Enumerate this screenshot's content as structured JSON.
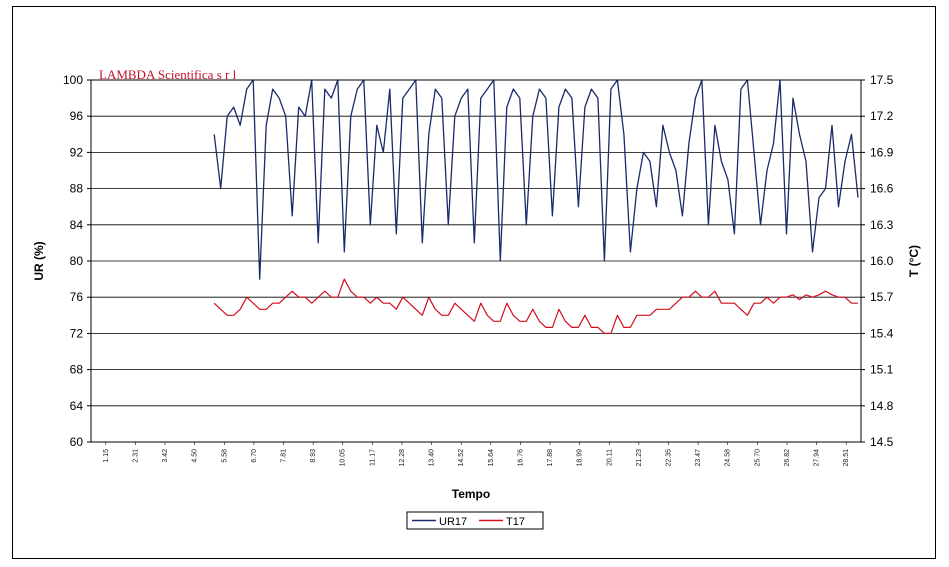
{
  "chart_data": {
    "type": "line",
    "brand_text": "LAMBDA Scientifica s r l",
    "xlabel": "Tempo",
    "ylabel_left": "UR (%)",
    "ylabel_right": "T (°C)",
    "ylim_left": [
      60,
      100
    ],
    "ylim_right": [
      14.5,
      17.5
    ],
    "yticks_left": [
      "60",
      "64",
      "68",
      "72",
      "76",
      "80",
      "84",
      "88",
      "92",
      "96",
      "100"
    ],
    "yticks_right": [
      "14.5",
      "14.8",
      "15.1",
      "15.4",
      "15.7",
      "16.0",
      "16.3",
      "16.6",
      "16.9",
      "17.2",
      "17.5"
    ],
    "x_start_index": 0.16,
    "grid": "horizontal",
    "legend_placement": "bottom-center",
    "series": [
      {
        "name": "UR17",
        "axis": "left",
        "color": "#1a2a6c",
        "values": [
          94,
          88,
          96,
          97,
          95,
          99,
          100,
          78,
          95,
          99,
          98,
          96,
          85,
          97,
          96,
          100,
          82,
          99,
          98,
          100,
          81,
          96,
          99,
          100,
          84,
          95,
          92,
          99,
          83,
          98,
          99,
          100,
          82,
          94,
          99,
          98,
          84,
          96,
          98,
          99,
          82,
          98,
          99,
          100,
          80,
          97,
          99,
          98,
          84,
          96,
          99,
          98,
          85,
          97,
          99,
          98,
          86,
          97,
          99,
          98,
          80,
          99,
          100,
          94,
          81,
          88,
          92,
          91,
          86,
          95,
          92,
          90,
          85,
          93,
          98,
          100,
          84,
          95,
          91,
          89,
          83,
          99,
          100,
          92,
          84,
          90,
          93,
          100,
          83,
          98,
          94,
          91,
          81,
          87,
          88,
          95,
          86,
          91,
          94,
          87
        ]
      },
      {
        "name": "T17",
        "axis": "right",
        "color": "#d0101e",
        "values": [
          15.65,
          15.6,
          15.55,
          15.55,
          15.6,
          15.7,
          15.65,
          15.6,
          15.6,
          15.65,
          15.65,
          15.7,
          15.75,
          15.7,
          15.7,
          15.65,
          15.7,
          15.75,
          15.7,
          15.7,
          15.85,
          15.75,
          15.7,
          15.7,
          15.65,
          15.7,
          15.65,
          15.65,
          15.6,
          15.7,
          15.65,
          15.6,
          15.55,
          15.7,
          15.6,
          15.55,
          15.55,
          15.65,
          15.6,
          15.55,
          15.5,
          15.65,
          15.55,
          15.5,
          15.5,
          15.65,
          15.55,
          15.5,
          15.5,
          15.6,
          15.5,
          15.45,
          15.45,
          15.6,
          15.5,
          15.45,
          15.45,
          15.55,
          15.45,
          15.45,
          15.4,
          15.4,
          15.55,
          15.45,
          15.45,
          15.55,
          15.55,
          15.55,
          15.6,
          15.6,
          15.6,
          15.65,
          15.7,
          15.7,
          15.75,
          15.7,
          15.7,
          15.75,
          15.65,
          15.65,
          15.65,
          15.6,
          15.55,
          15.65,
          15.65,
          15.7,
          15.65,
          15.7,
          15.7,
          15.72,
          15.68,
          15.72,
          15.7,
          15.72,
          15.75,
          15.72,
          15.7,
          15.7,
          15.65,
          15.65
        ]
      }
    ],
    "x_tick_labels": [
      "1.15",
      "2.31",
      "3.42",
      "4.50",
      "5.58",
      "6.70",
      "7.81",
      "8.93",
      "10.05",
      "11.17",
      "12.28",
      "13.40",
      "14.52",
      "15.64",
      "16.76",
      "17.88",
      "18.99",
      "20.11",
      "21.23",
      "22.35",
      "23.47",
      "24.58",
      "25.70",
      "26.82",
      "27.94",
      "28.51"
    ]
  }
}
